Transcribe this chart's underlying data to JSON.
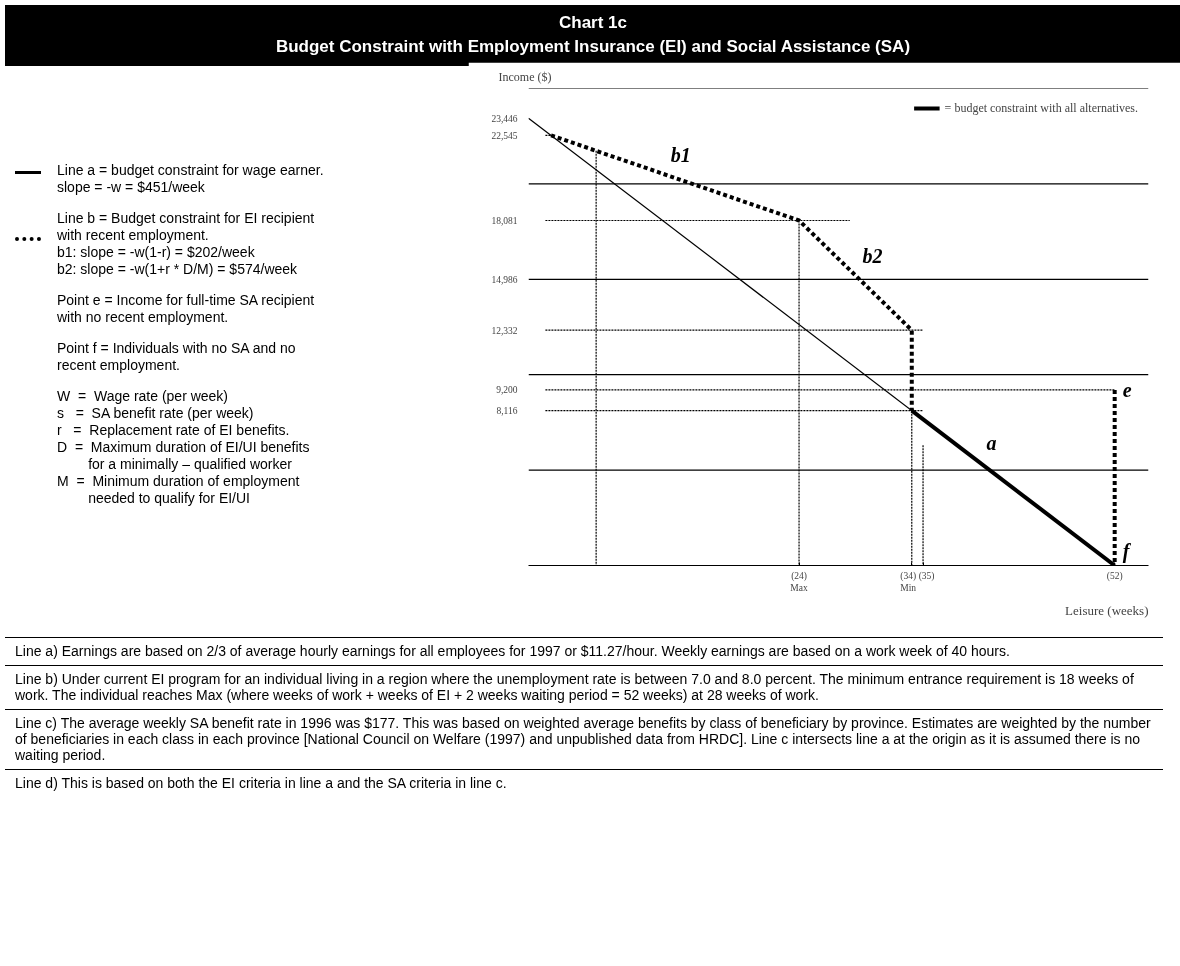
{
  "chart_data": {
    "type": "line",
    "title": "Chart 1c",
    "subtitle": "Budget Constraint with Employment Insurance (EI) and Social Assistance (SA)",
    "xlabel": "Leisure (weeks)",
    "ylabel": "Income ($)",
    "xlim": [
      0,
      55
    ],
    "ylim": [
      0,
      25000
    ],
    "xticks": [
      {
        "value": 24,
        "label": "(24)\nMax"
      },
      {
        "value": 34,
        "label": "(34)\nMin"
      },
      {
        "value": 35,
        "label": "(35)"
      },
      {
        "value": 52,
        "label": "(52)"
      }
    ],
    "yticks": [
      {
        "value": 23446,
        "label": "23,446"
      },
      {
        "value": 22545,
        "label": "22,545"
      },
      {
        "value": 18081,
        "label": "18,081"
      },
      {
        "value": 14986,
        "label": "14,986"
      },
      {
        "value": 12332,
        "label": "12,332"
      },
      {
        "value": 9200,
        "label": "9,200"
      },
      {
        "value": 8116,
        "label": "8,116"
      }
    ],
    "ref_lines": [
      {
        "axis": "y",
        "value": 5000,
        "color": "#000000",
        "line_style": "solid"
      },
      {
        "axis": "y",
        "value": 10000,
        "color": "#000000",
        "line_style": "solid"
      },
      {
        "axis": "y",
        "value": 15000,
        "color": "#000000",
        "line_style": "solid"
      },
      {
        "axis": "y",
        "value": 20000,
        "color": "#000000",
        "line_style": "solid"
      },
      {
        "axis": "y",
        "value": 25000,
        "color": "#000000",
        "line_style": "solid"
      }
    ],
    "legend": "top right",
    "series": [
      {
        "color": "#000000",
        "line_style": "dashed",
        "x": [
          1.5,
          2
        ],
        "values": [
          22545,
          22545
        ]
      },
      {
        "color": "#000000",
        "line_style": "dashed",
        "x": [
          1.5,
          28.5
        ],
        "values": [
          18081,
          18081
        ]
      },
      {
        "color": "#000000",
        "line_style": "dashed",
        "x": [
          1.5,
          35
        ],
        "values": [
          12332,
          12332
        ]
      },
      {
        "color": "#000000",
        "line_style": "dashed",
        "x": [
          1.5,
          52
        ],
        "values": [
          9200,
          9200
        ]
      },
      {
        "color": "#000000",
        "line_style": "dashed",
        "x": [
          1.5,
          35
        ],
        "values": [
          8116,
          8116
        ]
      },
      {
        "color": "#000000",
        "line_style": "dashed",
        "x": [
          6,
          6
        ],
        "values": [
          21737,
          0
        ]
      },
      {
        "color": "#000000",
        "line_style": "dashed",
        "x": [
          24,
          24
        ],
        "values": [
          18081,
          0
        ]
      },
      {
        "color": "#000000",
        "line_style": "dashed",
        "x": [
          34,
          34
        ],
        "values": [
          8116,
          0
        ]
      },
      {
        "color": "#000000",
        "line_style": "dashed",
        "x": [
          35,
          35
        ],
        "values": [
          6300,
          0
        ]
      },
      {
        "color": "#000000",
        "line_style": "solid",
        "x": [
          0,
          52
        ],
        "values": [
          23446,
          0
        ]
      },
      {
        "color": "#000000",
        "line_style": "dotted",
        "x": [
          2,
          24,
          34,
          34
        ],
        "values": [
          22545,
          18081,
          12332,
          8116
        ]
      },
      {
        "color": "#000000",
        "line_style": "dotted",
        "x": [
          52,
          52
        ],
        "values": [
          9200,
          0
        ]
      },
      {
        "name": "= budget constraint with all alternatives.",
        "color": "#000000",
        "line_style": "solid",
        "x": [
          34,
          52
        ],
        "values": [
          8116,
          0
        ]
      }
    ],
    "annotations": [
      {
        "text": "b1",
        "x": 12,
        "y": 20525
      },
      {
        "text": "b2",
        "x": 29,
        "y": 15211
      },
      {
        "text": "a",
        "x": 40,
        "y": 5412
      },
      {
        "text": "e",
        "x": 52,
        "y": 9200
      },
      {
        "text": "f",
        "x": 52,
        "y": 0
      },
      "Line a = budget constraint for wage earner.\nslope = -w = $451/week",
      "Line b = Budget constraint for EI recipient\nwith recent employment.\nb1: slope = -w(1-r) = $202/week\nb2: slope = -w(1+r * D/M) = $574/week",
      "Point e = Income for full-time SA recipient\nwith no recent employment.",
      "Point f = Individuals with no SA and no\nrecent employment.",
      "W  =  Wage rate (per week)\ns   =  SA benefit rate (per week)\nr   =  Replacement rate of EI benefits.\nD  =  Maximum duration of EI/UI benefits\n        for a minimally – qualified worker\nM  =  Minimum duration of employment\n        needed to qualify for EI/UI",
      "Line a) Earnings are based on 2/3 of average hourly earnings for all employees for 1997 or $11.27/hour.  Weekly earnings are based on a work week of 40 hours.",
      "Line b) Under current EI program for an individual living in a region where the unemployment rate is between 7.0 and 8.0 percent. The minimum entrance requirement is 18 weeks of work.  The individual reaches Max (where weeks of work + weeks of EI + 2 weeks waiting period = 52 weeks) at 28 weeks of work.",
      "Line c) The average weekly SA benefit rate in 1996 was $177.  This was based on weighted average benefits by class of beneficiary by province.  Estimates are weighted by the number of beneficiaries in each class in each province [National Council on Welfare (1997) and unpublished data from HRDC].  Line c intersects line a at the origin as it is assumed there is no waiting period.",
      "Line d) This is based on both the EI criteria in line a and the SA criteria in line c."
    ]
  }
}
